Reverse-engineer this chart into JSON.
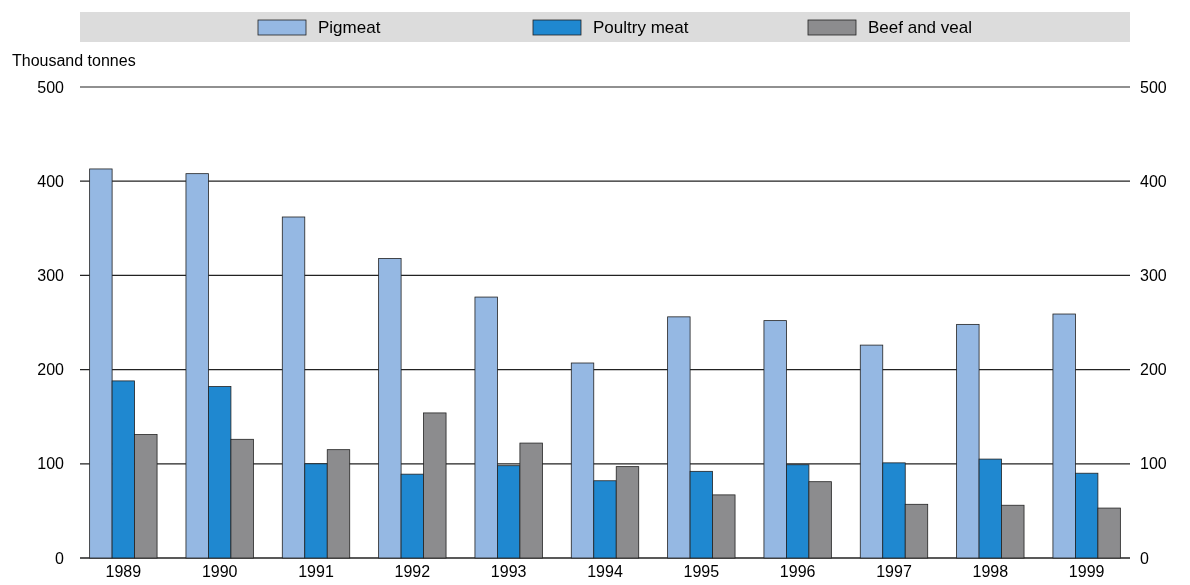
{
  "chart_data": {
    "type": "bar",
    "ylabel": "Thousand tonnes",
    "categories": [
      "1989",
      "1990",
      "1991",
      "1992",
      "1993",
      "1994",
      "1995",
      "1996",
      "1997",
      "1998",
      "1999"
    ],
    "series": [
      {
        "name": "Pigmeat",
        "color": "#95b8e3",
        "values": [
          413,
          408,
          362,
          318,
          277,
          207,
          256,
          252,
          226,
          248,
          259
        ]
      },
      {
        "name": "Poultry meat",
        "color": "#1f88d0",
        "values": [
          188,
          182,
          100,
          89,
          98,
          82,
          92,
          99,
          101,
          105,
          90
        ]
      },
      {
        "name": "Beef and veal",
        "color": "#8c8c8e",
        "values": [
          131,
          126,
          115,
          154,
          122,
          97,
          67,
          81,
          57,
          56,
          53
        ]
      }
    ],
    "ylim": [
      0,
      500
    ],
    "yticks": [
      0,
      100,
      200,
      300,
      400,
      500
    ],
    "y2lim": [
      0,
      500
    ],
    "y2ticks": [
      0,
      100,
      200,
      300,
      400,
      500
    ],
    "grid": "y",
    "legend": "top"
  }
}
